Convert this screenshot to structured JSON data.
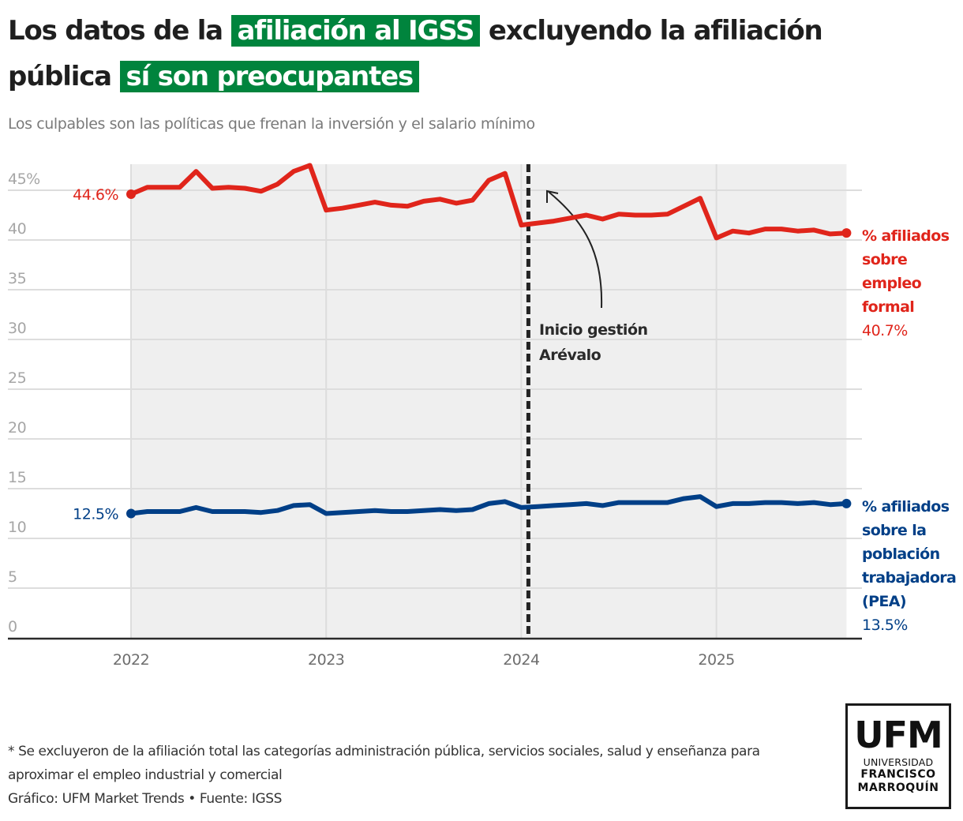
{
  "header": {
    "title_parts": [
      {
        "text": "Los datos de la ",
        "highlight": false
      },
      {
        "text": "afiliación al IGSS",
        "highlight": true
      },
      {
        "text": " excluyendo la afiliación pública ",
        "highlight": false
      },
      {
        "text": "sí son preocupantes",
        "highlight": true
      }
    ],
    "subtitle": "Los culpables son las políticas que frenan la inversión y el salario mínimo"
  },
  "colors": {
    "highlight": "#00843d",
    "red_series": "#e0251b",
    "blue_series": "#003f87",
    "plot_bg": "#efefef",
    "grid": "#dddddd",
    "annotation": "#222222"
  },
  "chart_data": {
    "type": "line",
    "title": "Los datos de la afiliación al IGSS excluyendo la afiliación pública sí son preocupantes",
    "xlabel": "",
    "ylabel": "",
    "x_start": "2022-01",
    "x_ticks": [
      "2022",
      "2023",
      "2024",
      "2025"
    ],
    "y_ticks": [
      "45%",
      "40",
      "35",
      "30",
      "25",
      "20",
      "15",
      "10",
      "5",
      "0"
    ],
    "y_tick_values": [
      45,
      40,
      35,
      30,
      25,
      20,
      15,
      10,
      5,
      0
    ],
    "ylim": [
      0,
      47.5
    ],
    "grid": true,
    "frequency": "monthly",
    "series": [
      {
        "name": "% afiliados sobre empleo formal",
        "label_lines": [
          "% afiliados",
          "sobre",
          "empleo",
          "formal"
        ],
        "start_label": "44.6%",
        "end_label": "40.7%",
        "color": "red",
        "values": [
          44.6,
          45.3,
          45.3,
          45.3,
          46.9,
          45.2,
          45.3,
          45.2,
          44.9,
          45.6,
          46.9,
          47.5,
          43.0,
          43.2,
          43.5,
          43.8,
          43.5,
          43.4,
          43.9,
          44.1,
          43.7,
          44.0,
          46.0,
          46.7,
          41.5,
          41.7,
          41.9,
          42.2,
          42.5,
          42.1,
          42.6,
          42.5,
          42.5,
          42.6,
          43.4,
          44.2,
          40.2,
          40.9,
          40.7,
          41.1,
          41.1,
          40.9,
          41.0,
          40.6,
          40.7
        ]
      },
      {
        "name": "% afiliados sobre la población trabajadora (PEA)",
        "label_lines": [
          "% afiliados",
          "sobre la",
          "población",
          "trabajadora",
          "(PEA)"
        ],
        "start_label": "12.5%",
        "end_label": "13.5%",
        "color": "blue",
        "values": [
          12.5,
          12.7,
          12.7,
          12.7,
          13.1,
          12.7,
          12.7,
          12.7,
          12.6,
          12.8,
          13.3,
          13.4,
          12.5,
          12.6,
          12.7,
          12.8,
          12.7,
          12.7,
          12.8,
          12.9,
          12.8,
          12.9,
          13.5,
          13.7,
          13.1,
          13.2,
          13.3,
          13.4,
          13.5,
          13.3,
          13.6,
          13.6,
          13.6,
          13.6,
          14.0,
          14.2,
          13.2,
          13.5,
          13.5,
          13.6,
          13.6,
          13.5,
          13.6,
          13.4,
          13.5
        ]
      }
    ],
    "annotation": {
      "lines": [
        "Inicio gestión",
        "Arévalo"
      ],
      "x": "2024-01"
    }
  },
  "footer": {
    "footnote": "* Se excluyeron de la afiliación total las categorías administración pública, servicios sociales, salud y enseñanza para aproximar el empleo industrial y comercial",
    "credit": "Gráfico: UFM Market Trends • Fuente: IGSS"
  },
  "logo": {
    "big": "UFM",
    "line1": "UNIVERSIDAD",
    "line2": "FRANCISCO",
    "line3": "MARROQUÍN"
  }
}
